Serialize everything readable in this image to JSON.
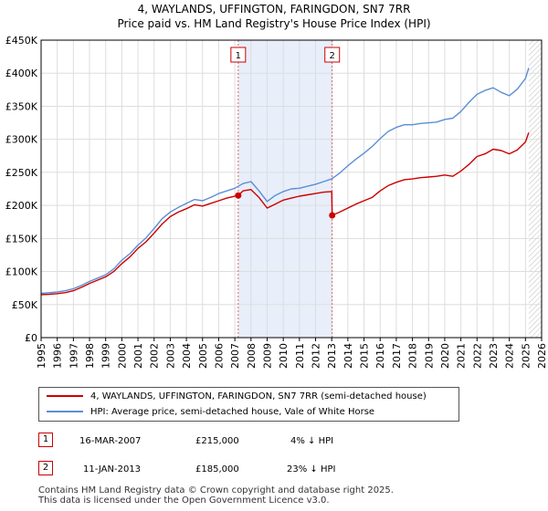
{
  "title": {
    "line1": "4, WAYLANDS, UFFINGTON, FARINGDON, SN7 7RR",
    "line2": "Price paid vs. HM Land Registry's House Price Index (HPI)"
  },
  "chart_data": {
    "type": "line",
    "xlim": [
      1995,
      2026
    ],
    "ylim": [
      0,
      450000
    ],
    "x_ticks": [
      "1995",
      "1996",
      "1997",
      "1998",
      "1999",
      "2000",
      "2001",
      "2002",
      "2003",
      "2004",
      "2005",
      "2006",
      "2007",
      "2008",
      "2009",
      "2010",
      "2011",
      "2012",
      "2013",
      "2014",
      "2015",
      "2016",
      "2017",
      "2018",
      "2019",
      "2020",
      "2021",
      "2022",
      "2023",
      "2024",
      "2025",
      "2026"
    ],
    "y_ticks": [
      {
        "value": 0,
        "label": "£0"
      },
      {
        "value": 50000,
        "label": "£50K"
      },
      {
        "value": 100000,
        "label": "£100K"
      },
      {
        "value": 150000,
        "label": "£150K"
      },
      {
        "value": 200000,
        "label": "£200K"
      },
      {
        "value": 250000,
        "label": "£250K"
      },
      {
        "value": 300000,
        "label": "£300K"
      },
      {
        "value": 350000,
        "label": "£350K"
      },
      {
        "value": 400000,
        "label": "£400K"
      },
      {
        "value": 450000,
        "label": "£450K"
      }
    ],
    "grid": true,
    "shaded_region": {
      "x_start": 2007.21,
      "x_end": 2013.03,
      "color": "#e8eefa"
    },
    "hatched_region": {
      "x_start": 2025.2,
      "x_end": 2026
    },
    "series": [
      {
        "name": "4, WAYLANDS, UFFINGTON, FARINGDON, SN7 7RR (semi-detached house)",
        "color": "#cc0000",
        "x": [
          1995,
          1995.5,
          1996,
          1996.5,
          1997,
          1997.5,
          1998,
          1998.5,
          1999,
          1999.5,
          2000,
          2000.5,
          2001,
          2001.5,
          2002,
          2002.5,
          2003,
          2003.5,
          2004,
          2004.5,
          2005,
          2005.5,
          2006,
          2006.5,
          2007,
          2007.21,
          2007.21,
          2007.5,
          2008,
          2008.5,
          2009,
          2009.5,
          2010,
          2010.5,
          2011,
          2011.5,
          2012,
          2012.5,
          2013.0,
          2013.03,
          2013.03,
          2013.5,
          2014,
          2014.5,
          2015,
          2015.5,
          2016,
          2016.5,
          2017,
          2017.5,
          2018,
          2018.5,
          2019,
          2019.5,
          2020,
          2020.5,
          2021,
          2021.5,
          2022,
          2022.5,
          2023,
          2023.5,
          2024,
          2024.5,
          2025,
          2025.2
        ],
        "values": [
          65000,
          65500,
          66500,
          68000,
          71000,
          76000,
          82000,
          87000,
          92000,
          100000,
          112000,
          122000,
          135000,
          145000,
          158000,
          172000,
          183000,
          190000,
          195000,
          201000,
          199000,
          203000,
          207000,
          211000,
          214000,
          215000,
          215000,
          222000,
          224000,
          212000,
          196000,
          202000,
          208000,
          211000,
          214000,
          216000,
          218000,
          220000,
          221000,
          185000,
          185000,
          190000,
          196000,
          202000,
          207000,
          212000,
          222000,
          230000,
          235000,
          239000,
          240000,
          242000,
          243000,
          244000,
          246000,
          244000,
          252000,
          262000,
          274000,
          278000,
          285000,
          283000,
          278000,
          284000,
          296000,
          310000
        ]
      },
      {
        "name": "HPI: Average price, semi-detached house, Vale of White Horse",
        "color": "#5b8ed6",
        "x": [
          1995,
          1995.5,
          1996,
          1996.5,
          1997,
          1997.5,
          1998,
          1998.5,
          1999,
          1999.5,
          2000,
          2000.5,
          2001,
          2001.5,
          2002,
          2002.5,
          2003,
          2003.5,
          2004,
          2004.5,
          2005,
          2005.5,
          2006,
          2006.5,
          2007,
          2007.5,
          2008,
          2008.5,
          2009,
          2009.5,
          2010,
          2010.5,
          2011,
          2011.5,
          2012,
          2012.5,
          2013,
          2013.5,
          2014,
          2014.5,
          2015,
          2015.5,
          2016,
          2016.5,
          2017,
          2017.5,
          2018,
          2018.5,
          2019,
          2019.5,
          2020,
          2020.5,
          2021,
          2021.5,
          2022,
          2022.5,
          2023,
          2023.5,
          2024,
          2024.5,
          2025,
          2025.2
        ],
        "values": [
          67000,
          68000,
          69000,
          71000,
          74000,
          79000,
          85000,
          90000,
          95000,
          104000,
          117000,
          127000,
          140000,
          151000,
          165000,
          180000,
          190000,
          197000,
          203000,
          209000,
          207000,
          212000,
          218000,
          222000,
          226000,
          233000,
          236000,
          222000,
          206000,
          215000,
          221000,
          225000,
          226000,
          229000,
          232000,
          236000,
          240000,
          249000,
          260000,
          270000,
          279000,
          289000,
          301000,
          312000,
          318000,
          322000,
          322000,
          324000,
          325000,
          326000,
          330000,
          332000,
          342000,
          356000,
          368000,
          374000,
          378000,
          371000,
          366000,
          376000,
          392000,
          408000
        ]
      }
    ],
    "sales": [
      {
        "id": "1",
        "x": 2007.21,
        "value": 215000,
        "date": "16-MAR-2007",
        "price": "£215,000",
        "hpi": "4% ↓ HPI"
      },
      {
        "id": "2",
        "x": 2013.03,
        "value": 185000,
        "date": "11-JAN-2013",
        "price": "£185,000",
        "hpi": "23% ↓ HPI"
      }
    ]
  },
  "legend": {
    "items": [
      {
        "label": "4, WAYLANDS, UFFINGTON, FARINGDON, SN7 7RR (semi-detached house)",
        "color": "#cc0000"
      },
      {
        "label": "HPI: Average price, semi-detached house, Vale of White Horse",
        "color": "#5b8ed6"
      }
    ]
  },
  "footer": {
    "line1": "Contains HM Land Registry data © Crown copyright and database right 2025.",
    "line2": "This data is licensed under the Open Government Licence v3.0."
  }
}
